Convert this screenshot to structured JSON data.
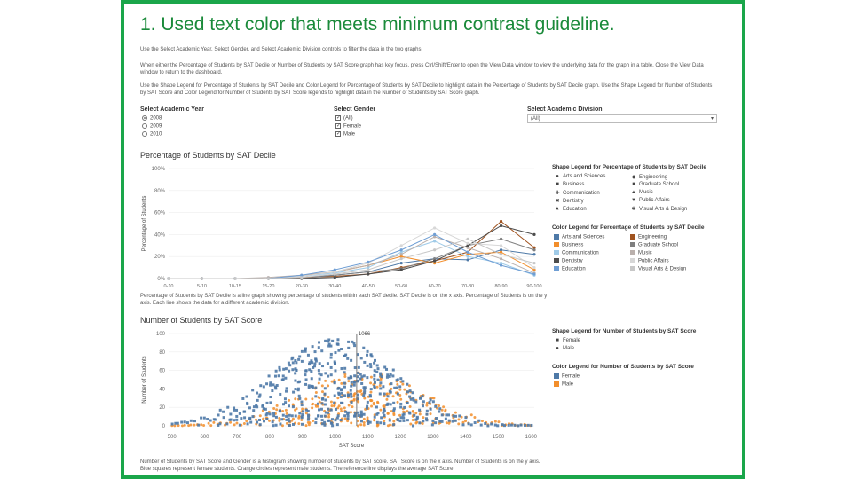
{
  "slide_title": "1. Used text color that meets minimum contrast guideline.",
  "instructions": [
    "Use the Select Academic Year, Select Gender, and Select Academic Division controls to filter the data in the two graphs.",
    "When either the Percentage of Students by SAT Decile or Number of Students by SAT Score graph has key focus, press Ctrl/Shift/Enter to open the View Data window to view the underlying data for the graph in a table. Close the View Data window to return to the dashboard.",
    "Use the Shape Legend for Percentage of Students by SAT Decile and Color Legend for Percentage of Students by SAT Decile to highlight data in the Percentage of Students by SAT Decile graph. Use the Shape Legend for Number of Students by SAT Score and Color Legend for Number of Students by SAT Score legends to highlight data in the Number of Students by SAT Score graph."
  ],
  "filters": {
    "year_label": "Select Academic Year",
    "years": [
      "2008",
      "2009",
      "2010"
    ],
    "gender_label": "Select Gender",
    "genders": [
      "(All)",
      "Female",
      "Male"
    ],
    "division_label": "Select Academic Division",
    "division_value": "(All)"
  },
  "shape_legend_1": {
    "title": "Shape Legend for Percentage of Students by SAT Decile",
    "items": [
      {
        "label": "Arts and Sciences",
        "shape": "●"
      },
      {
        "label": "Engineering",
        "shape": "◆"
      },
      {
        "label": "Business",
        "shape": "■"
      },
      {
        "label": "Graduate School",
        "shape": "■"
      },
      {
        "label": "Communication",
        "shape": "✚"
      },
      {
        "label": "Music",
        "shape": "▲"
      },
      {
        "label": "Dentistry",
        "shape": "✖"
      },
      {
        "label": "Public Affairs",
        "shape": "▼"
      },
      {
        "label": "Education",
        "shape": "★"
      },
      {
        "label": "Visual Arts & Design",
        "shape": "✱"
      }
    ]
  },
  "color_legend_1": {
    "title": "Color Legend for Percentage of Students by SAT Decile",
    "items": [
      {
        "label": "Arts and Sciences",
        "color": "#4e79a7"
      },
      {
        "label": "Engineering",
        "color": "#a0531f"
      },
      {
        "label": "Business",
        "color": "#f28e2b"
      },
      {
        "label": "Graduate School",
        "color": "#7f7f7f"
      },
      {
        "label": "Communication",
        "color": "#a0cbe8"
      },
      {
        "label": "Music",
        "color": "#bab0ac"
      },
      {
        "label": "Dentistry",
        "color": "#4d4d4d"
      },
      {
        "label": "Public Affairs",
        "color": "#d7d7d7"
      },
      {
        "label": "Education",
        "color": "#6f9ed4"
      },
      {
        "label": "Visual Arts & Design",
        "color": "#c7c7c7"
      }
    ]
  },
  "caption_1": "Percentage of Students by SAT Decile is a line graph showing percentage of students within each SAT decile. SAT Decile is on the x axis. Percentage of Students is on the y axis. Each line shows the data for a different academic division.",
  "shape_legend_2": {
    "title": "Shape Legend for Number of Students by SAT Score",
    "items": [
      {
        "label": "Female",
        "shape": "■"
      },
      {
        "label": "Male",
        "shape": "●"
      }
    ]
  },
  "color_legend_2": {
    "title": "Color Legend for Number of Students by SAT Score",
    "items": [
      {
        "label": "Female",
        "color": "#4e79a7"
      },
      {
        "label": "Male",
        "color": "#f28e2b"
      }
    ]
  },
  "caption_2": "Number of Students by SAT Score and Gender is a histogram showing number of students by SAT score. SAT Score is on the x axis. Number of Students is on the y axis. Blue squares represent female students. Orange circles represent male students. The reference line displays the average SAT Score.",
  "chart_data": [
    {
      "type": "line",
      "title": "Percentage of Students by SAT Decile",
      "xlabel": "",
      "ylabel": "Percentage of Students",
      "categories": [
        "0-10",
        "5-10",
        "10-15",
        "15-20",
        "20-30",
        "30-40",
        "40-50",
        "50-60",
        "60-70",
        "70-80",
        "80-90",
        "90-100"
      ],
      "y_ticks": [
        "0%",
        "20%",
        "40%",
        "60%",
        "80%",
        "100%"
      ],
      "ylim": [
        0,
        100
      ],
      "series": [
        {
          "name": "Arts and Sciences",
          "color": "#4e79a7",
          "values": [
            0,
            0,
            0,
            0,
            1,
            3,
            6,
            14,
            18,
            17,
            26,
            22
          ]
        },
        {
          "name": "Engineering",
          "color": "#a0531f",
          "values": [
            0,
            0,
            0,
            0,
            1,
            2,
            4,
            10,
            16,
            24,
            52,
            28
          ]
        },
        {
          "name": "Business",
          "color": "#f28e2b",
          "values": [
            0,
            0,
            0,
            0,
            2,
            6,
            12,
            20,
            14,
            22,
            24,
            8
          ]
        },
        {
          "name": "Graduate School",
          "color": "#7f7f7f",
          "values": [
            0,
            0,
            0,
            0,
            0,
            3,
            6,
            9,
            18,
            30,
            36,
            26
          ]
        },
        {
          "name": "Communication",
          "color": "#a0cbe8",
          "values": [
            0,
            0,
            0,
            0,
            2,
            5,
            10,
            24,
            34,
            20,
            14,
            3
          ]
        },
        {
          "name": "Music",
          "color": "#bab0ac",
          "values": [
            0,
            0,
            0,
            1,
            3,
            6,
            12,
            22,
            38,
            28,
            18,
            5
          ]
        },
        {
          "name": "Dentistry",
          "color": "#4d4d4d",
          "values": [
            0,
            0,
            0,
            0,
            0,
            1,
            4,
            8,
            16,
            30,
            48,
            40
          ]
        },
        {
          "name": "Public Affairs",
          "color": "#d7d7d7",
          "values": [
            0,
            0,
            0,
            0,
            2,
            6,
            14,
            30,
            46,
            32,
            30,
            10
          ]
        },
        {
          "name": "Education",
          "color": "#6f9ed4",
          "values": [
            0,
            0,
            0,
            0,
            3,
            8,
            15,
            26,
            40,
            24,
            12,
            4
          ]
        },
        {
          "name": "Visual Arts & Design",
          "color": "#c7c7c7",
          "values": [
            0,
            0,
            0,
            0,
            1,
            4,
            8,
            18,
            26,
            36,
            22,
            14
          ]
        }
      ]
    },
    {
      "type": "scatter",
      "title": "Number of Students by SAT Score",
      "xlabel": "SAT Score",
      "ylabel": "Number of Students",
      "x_ticks": [
        500,
        600,
        700,
        800,
        900,
        1000,
        1100,
        1200,
        1300,
        1400,
        1500,
        1600
      ],
      "y_ticks": [
        0,
        20,
        40,
        60,
        80,
        100
      ],
      "xlim": [
        490,
        1610
      ],
      "ylim": [
        0,
        100
      ],
      "reference_line": {
        "x": 1066,
        "label": "1066"
      },
      "series": [
        {
          "name": "Female",
          "color": "#4e79a7",
          "shape": "square",
          "peak_x": 1000,
          "peak_y": 95,
          "spread": 190
        },
        {
          "name": "Male",
          "color": "#f28e2b",
          "shape": "circle",
          "peak_x": 1080,
          "peak_y": 60,
          "spread": 190
        }
      ]
    }
  ]
}
